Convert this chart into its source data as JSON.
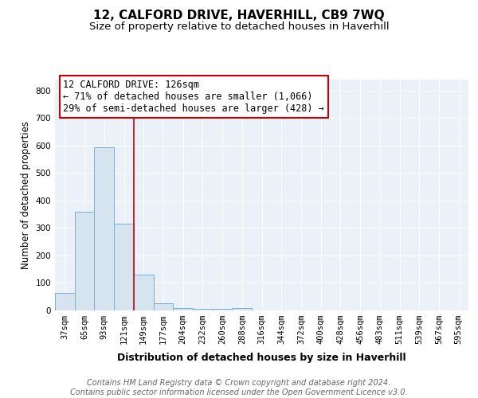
{
  "title": "12, CALFORD DRIVE, HAVERHILL, CB9 7WQ",
  "subtitle": "Size of property relative to detached houses in Haverhill",
  "xlabel": "Distribution of detached houses by size in Haverhill",
  "ylabel": "Number of detached properties",
  "footer_line1": "Contains HM Land Registry data © Crown copyright and database right 2024.",
  "footer_line2": "Contains public sector information licensed under the Open Government Licence v3.0.",
  "bar_labels": [
    "37sqm",
    "65sqm",
    "93sqm",
    "121sqm",
    "149sqm",
    "177sqm",
    "204sqm",
    "232sqm",
    "260sqm",
    "288sqm",
    "316sqm",
    "344sqm",
    "372sqm",
    "400sqm",
    "428sqm",
    "456sqm",
    "483sqm",
    "511sqm",
    "539sqm",
    "567sqm",
    "595sqm"
  ],
  "bar_values": [
    65,
    360,
    595,
    315,
    130,
    27,
    10,
    7,
    7,
    9,
    0,
    0,
    0,
    0,
    0,
    0,
    0,
    0,
    0,
    0,
    0
  ],
  "bar_color": "#d6e4f0",
  "bar_edge_color": "#7aafd4",
  "red_line_x": 3.5,
  "annotation_text_line1": "12 CALFORD DRIVE: 126sqm",
  "annotation_text_line2": "← 71% of detached houses are smaller (1,066)",
  "annotation_text_line3": "29% of semi-detached houses are larger (428) →",
  "annotation_box_facecolor": "#ffffff",
  "annotation_box_edgecolor": "#cc0000",
  "red_line_color": "#cc0000",
  "plot_bg_color": "#eaf1f8",
  "ylim": [
    0,
    840
  ],
  "yticks": [
    0,
    100,
    200,
    300,
    400,
    500,
    600,
    700,
    800
  ],
  "grid_color": "#ffffff",
  "background_color": "#ffffff",
  "title_fontsize": 11,
  "subtitle_fontsize": 9.5,
  "ylabel_fontsize": 8.5,
  "xlabel_fontsize": 9,
  "tick_fontsize": 7.5,
  "footer_fontsize": 7,
  "annotation_fontsize": 8.5
}
